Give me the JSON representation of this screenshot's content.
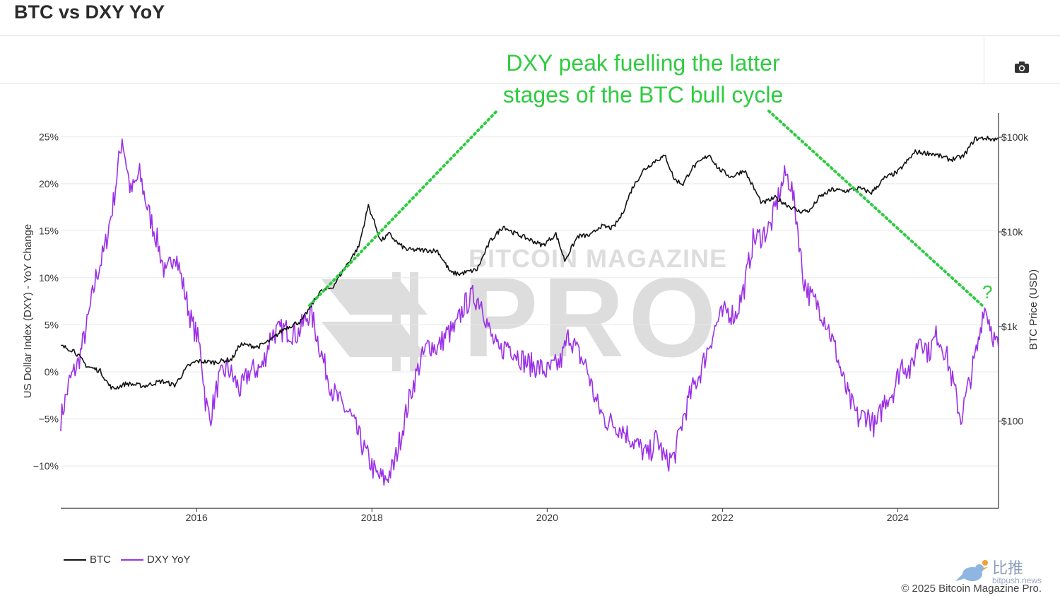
{
  "page": {
    "title": "BTC vs DXY YoY"
  },
  "toolbar": {
    "camera_icon": "camera-icon"
  },
  "watermark": {
    "line1": "BITCOIN MAGAZINE",
    "line2": "PRO"
  },
  "annotation": {
    "line1": "DXY peak fuelling the latter",
    "line2": "stages of the BTC bull cycle",
    "question_mark": "?"
  },
  "footer": {
    "copyright": "© 2025 Bitcoin Magazine Pro.",
    "bitpush_cn": "比推",
    "bitpush_en": "bitpush.news"
  },
  "colors": {
    "btc": "#111111",
    "dxy": "#9b30e6",
    "annotation": "#2ecc40",
    "grid": "#e8e8e8"
  },
  "chart_data": {
    "type": "line",
    "title": "BTC vs DXY YoY",
    "xlabel": "",
    "ylabel_left": "US Dollar Index (DXY) - YoY Change",
    "ylabel_right": "BTC Price (USD)",
    "x_ticks": [
      "2016",
      "2018",
      "2020",
      "2022",
      "2024"
    ],
    "y_left_ticks": [
      "25%",
      "20%",
      "15%",
      "10%",
      "5%",
      "0%",
      "−5%",
      "−10%"
    ],
    "y_left_tick_values": [
      25,
      20,
      15,
      10,
      5,
      0,
      -5,
      -10
    ],
    "y_right_ticks": [
      "$100k",
      "$10k",
      "$1k",
      "$100"
    ],
    "y_right_tick_values": [
      100000,
      10000,
      1000,
      100
    ],
    "y_right_scale": "log",
    "xlim": [
      2014.45,
      2025.15
    ],
    "ylim_left": [
      -14.5,
      27.5
    ],
    "ylim_right": [
      12,
      180000
    ],
    "grid": true,
    "legend_position": "bottom-left",
    "series": [
      {
        "name": "BTC",
        "axis": "right",
        "points": [
          [
            2014.45,
            620
          ],
          [
            2014.6,
            560
          ],
          [
            2014.75,
            380
          ],
          [
            2014.9,
            340
          ],
          [
            2015.0,
            240
          ],
          [
            2015.05,
            220
          ],
          [
            2015.2,
            250
          ],
          [
            2015.4,
            235
          ],
          [
            2015.6,
            265
          ],
          [
            2015.75,
            240
          ],
          [
            2015.9,
            380
          ],
          [
            2016.0,
            430
          ],
          [
            2016.2,
            420
          ],
          [
            2016.4,
            450
          ],
          [
            2016.5,
            650
          ],
          [
            2016.7,
            610
          ],
          [
            2016.85,
            720
          ],
          [
            2017.0,
            950
          ],
          [
            2017.2,
            1150
          ],
          [
            2017.4,
            2300
          ],
          [
            2017.55,
            2600
          ],
          [
            2017.7,
            4300
          ],
          [
            2017.85,
            7000
          ],
          [
            2017.96,
            19000
          ],
          [
            2018.05,
            11000
          ],
          [
            2018.1,
            8000
          ],
          [
            2018.2,
            9500
          ],
          [
            2018.3,
            7500
          ],
          [
            2018.4,
            6500
          ],
          [
            2018.6,
            6400
          ],
          [
            2018.75,
            6300
          ],
          [
            2018.9,
            3700
          ],
          [
            2019.0,
            3600
          ],
          [
            2019.2,
            4000
          ],
          [
            2019.35,
            8000
          ],
          [
            2019.5,
            11500
          ],
          [
            2019.6,
            10000
          ],
          [
            2019.8,
            8300
          ],
          [
            2019.95,
            7200
          ],
          [
            2020.1,
            9500
          ],
          [
            2020.2,
            5000
          ],
          [
            2020.35,
            9000
          ],
          [
            2020.5,
            9200
          ],
          [
            2020.6,
            11500
          ],
          [
            2020.75,
            11000
          ],
          [
            2020.85,
            15000
          ],
          [
            2020.97,
            29000
          ],
          [
            2021.1,
            45000
          ],
          [
            2021.25,
            58000
          ],
          [
            2021.35,
            63000
          ],
          [
            2021.45,
            36000
          ],
          [
            2021.55,
            32000
          ],
          [
            2021.65,
            47000
          ],
          [
            2021.85,
            66000
          ],
          [
            2021.95,
            47000
          ],
          [
            2022.1,
            38000
          ],
          [
            2022.25,
            45000
          ],
          [
            2022.35,
            30000
          ],
          [
            2022.45,
            20000
          ],
          [
            2022.6,
            23000
          ],
          [
            2022.75,
            19000
          ],
          [
            2022.87,
            16500
          ],
          [
            2023.0,
            16800
          ],
          [
            2023.1,
            23000
          ],
          [
            2023.25,
            28000
          ],
          [
            2023.4,
            27000
          ],
          [
            2023.55,
            29000
          ],
          [
            2023.7,
            26000
          ],
          [
            2023.85,
            37000
          ],
          [
            2024.0,
            43000
          ],
          [
            2024.2,
            70000
          ],
          [
            2024.4,
            67000
          ],
          [
            2024.6,
            58000
          ],
          [
            2024.75,
            63000
          ],
          [
            2024.88,
            96000
          ],
          [
            2025.0,
            98000
          ],
          [
            2025.1,
            95000
          ],
          [
            2025.15,
            97000
          ]
        ]
      },
      {
        "name": "DXY YoY",
        "axis": "left",
        "points": [
          [
            2014.45,
            -5.0
          ],
          [
            2014.55,
            -1.0
          ],
          [
            2014.65,
            1.0
          ],
          [
            2014.75,
            5.0
          ],
          [
            2014.85,
            10.0
          ],
          [
            2014.95,
            13.0
          ],
          [
            2015.05,
            18.0
          ],
          [
            2015.15,
            25.0
          ],
          [
            2015.25,
            19.0
          ],
          [
            2015.35,
            21.0
          ],
          [
            2015.45,
            17.0
          ],
          [
            2015.55,
            14.0
          ],
          [
            2015.65,
            10.0
          ],
          [
            2015.75,
            13.0
          ],
          [
            2015.85,
            9.0
          ],
          [
            2015.95,
            5.0
          ],
          [
            2016.0,
            4.0
          ],
          [
            2016.05,
            2.0
          ],
          [
            2016.1,
            -3.0
          ],
          [
            2016.15,
            -5.0
          ],
          [
            2016.25,
            -1.0
          ],
          [
            2016.35,
            0.5
          ],
          [
            2016.5,
            -2.0
          ],
          [
            2016.6,
            0.0
          ],
          [
            2016.75,
            0.5
          ],
          [
            2016.85,
            4.0
          ],
          [
            2017.0,
            4.5
          ],
          [
            2017.15,
            4.0
          ],
          [
            2017.3,
            6.5
          ],
          [
            2017.45,
            1.0
          ],
          [
            2017.55,
            -2.0
          ],
          [
            2017.65,
            -3.5
          ],
          [
            2017.75,
            -4.5
          ],
          [
            2017.9,
            -8.0
          ],
          [
            2018.05,
            -11.0
          ],
          [
            2018.15,
            -11.5
          ],
          [
            2018.25,
            -10.0
          ],
          [
            2018.35,
            -6.0
          ],
          [
            2018.45,
            -2.0
          ],
          [
            2018.55,
            1.0
          ],
          [
            2018.65,
            3.0
          ],
          [
            2018.75,
            2.5
          ],
          [
            2018.85,
            4.0
          ],
          [
            2018.95,
            4.5
          ],
          [
            2019.05,
            7.0
          ],
          [
            2019.15,
            8.0
          ],
          [
            2019.25,
            7.5
          ],
          [
            2019.35,
            4.0
          ],
          [
            2019.45,
            2.0
          ],
          [
            2019.55,
            3.0
          ],
          [
            2019.65,
            2.0
          ],
          [
            2019.75,
            1.0
          ],
          [
            2019.9,
            0.5
          ],
          [
            2020.0,
            0.0
          ],
          [
            2020.15,
            1.0
          ],
          [
            2020.25,
            4.0
          ],
          [
            2020.35,
            2.0
          ],
          [
            2020.45,
            0.5
          ],
          [
            2020.55,
            -3.0
          ],
          [
            2020.65,
            -5.0
          ],
          [
            2020.75,
            -5.5
          ],
          [
            2020.85,
            -6.0
          ],
          [
            2020.95,
            -7.0
          ],
          [
            2021.05,
            -8.0
          ],
          [
            2021.15,
            -9.0
          ],
          [
            2021.25,
            -7.0
          ],
          [
            2021.35,
            -9.5
          ],
          [
            2021.45,
            -9.0
          ],
          [
            2021.55,
            -5.0
          ],
          [
            2021.65,
            -2.0
          ],
          [
            2021.75,
            0.0
          ],
          [
            2021.85,
            3.0
          ],
          [
            2021.95,
            5.5
          ],
          [
            2022.05,
            6.5
          ],
          [
            2022.15,
            6.0
          ],
          [
            2022.25,
            9.0
          ],
          [
            2022.35,
            14.0
          ],
          [
            2022.45,
            14.5
          ],
          [
            2022.55,
            15.5
          ],
          [
            2022.65,
            19.0
          ],
          [
            2022.72,
            21.0
          ],
          [
            2022.78,
            20.0
          ],
          [
            2022.85,
            16.0
          ],
          [
            2022.92,
            10.0
          ],
          [
            2023.0,
            8.0
          ],
          [
            2023.1,
            7.0
          ],
          [
            2023.2,
            5.0
          ],
          [
            2023.3,
            2.0
          ],
          [
            2023.38,
            -1.0
          ],
          [
            2023.45,
            -3.0
          ],
          [
            2023.55,
            -5.0
          ],
          [
            2023.65,
            -4.5
          ],
          [
            2023.75,
            -6.0
          ],
          [
            2023.85,
            -3.0
          ],
          [
            2023.95,
            -2.0
          ],
          [
            2024.05,
            1.0
          ],
          [
            2024.15,
            0.0
          ],
          [
            2024.25,
            4.0
          ],
          [
            2024.35,
            2.0
          ],
          [
            2024.45,
            4.0
          ],
          [
            2024.55,
            2.0
          ],
          [
            2024.65,
            -2.0
          ],
          [
            2024.72,
            -5.0
          ],
          [
            2024.82,
            -1.0
          ],
          [
            2024.92,
            3.0
          ],
          [
            2024.98,
            7.0
          ],
          [
            2025.03,
            6.0
          ],
          [
            2025.1,
            3.5
          ],
          [
            2025.15,
            2.5
          ]
        ]
      }
    ],
    "annotations": [
      {
        "text": "DXY peak fuelling the latter stages of the BTC bull cycle",
        "style": "green dotted arrows"
      },
      {
        "text": "?",
        "near": "2025 DXY peak"
      }
    ]
  }
}
